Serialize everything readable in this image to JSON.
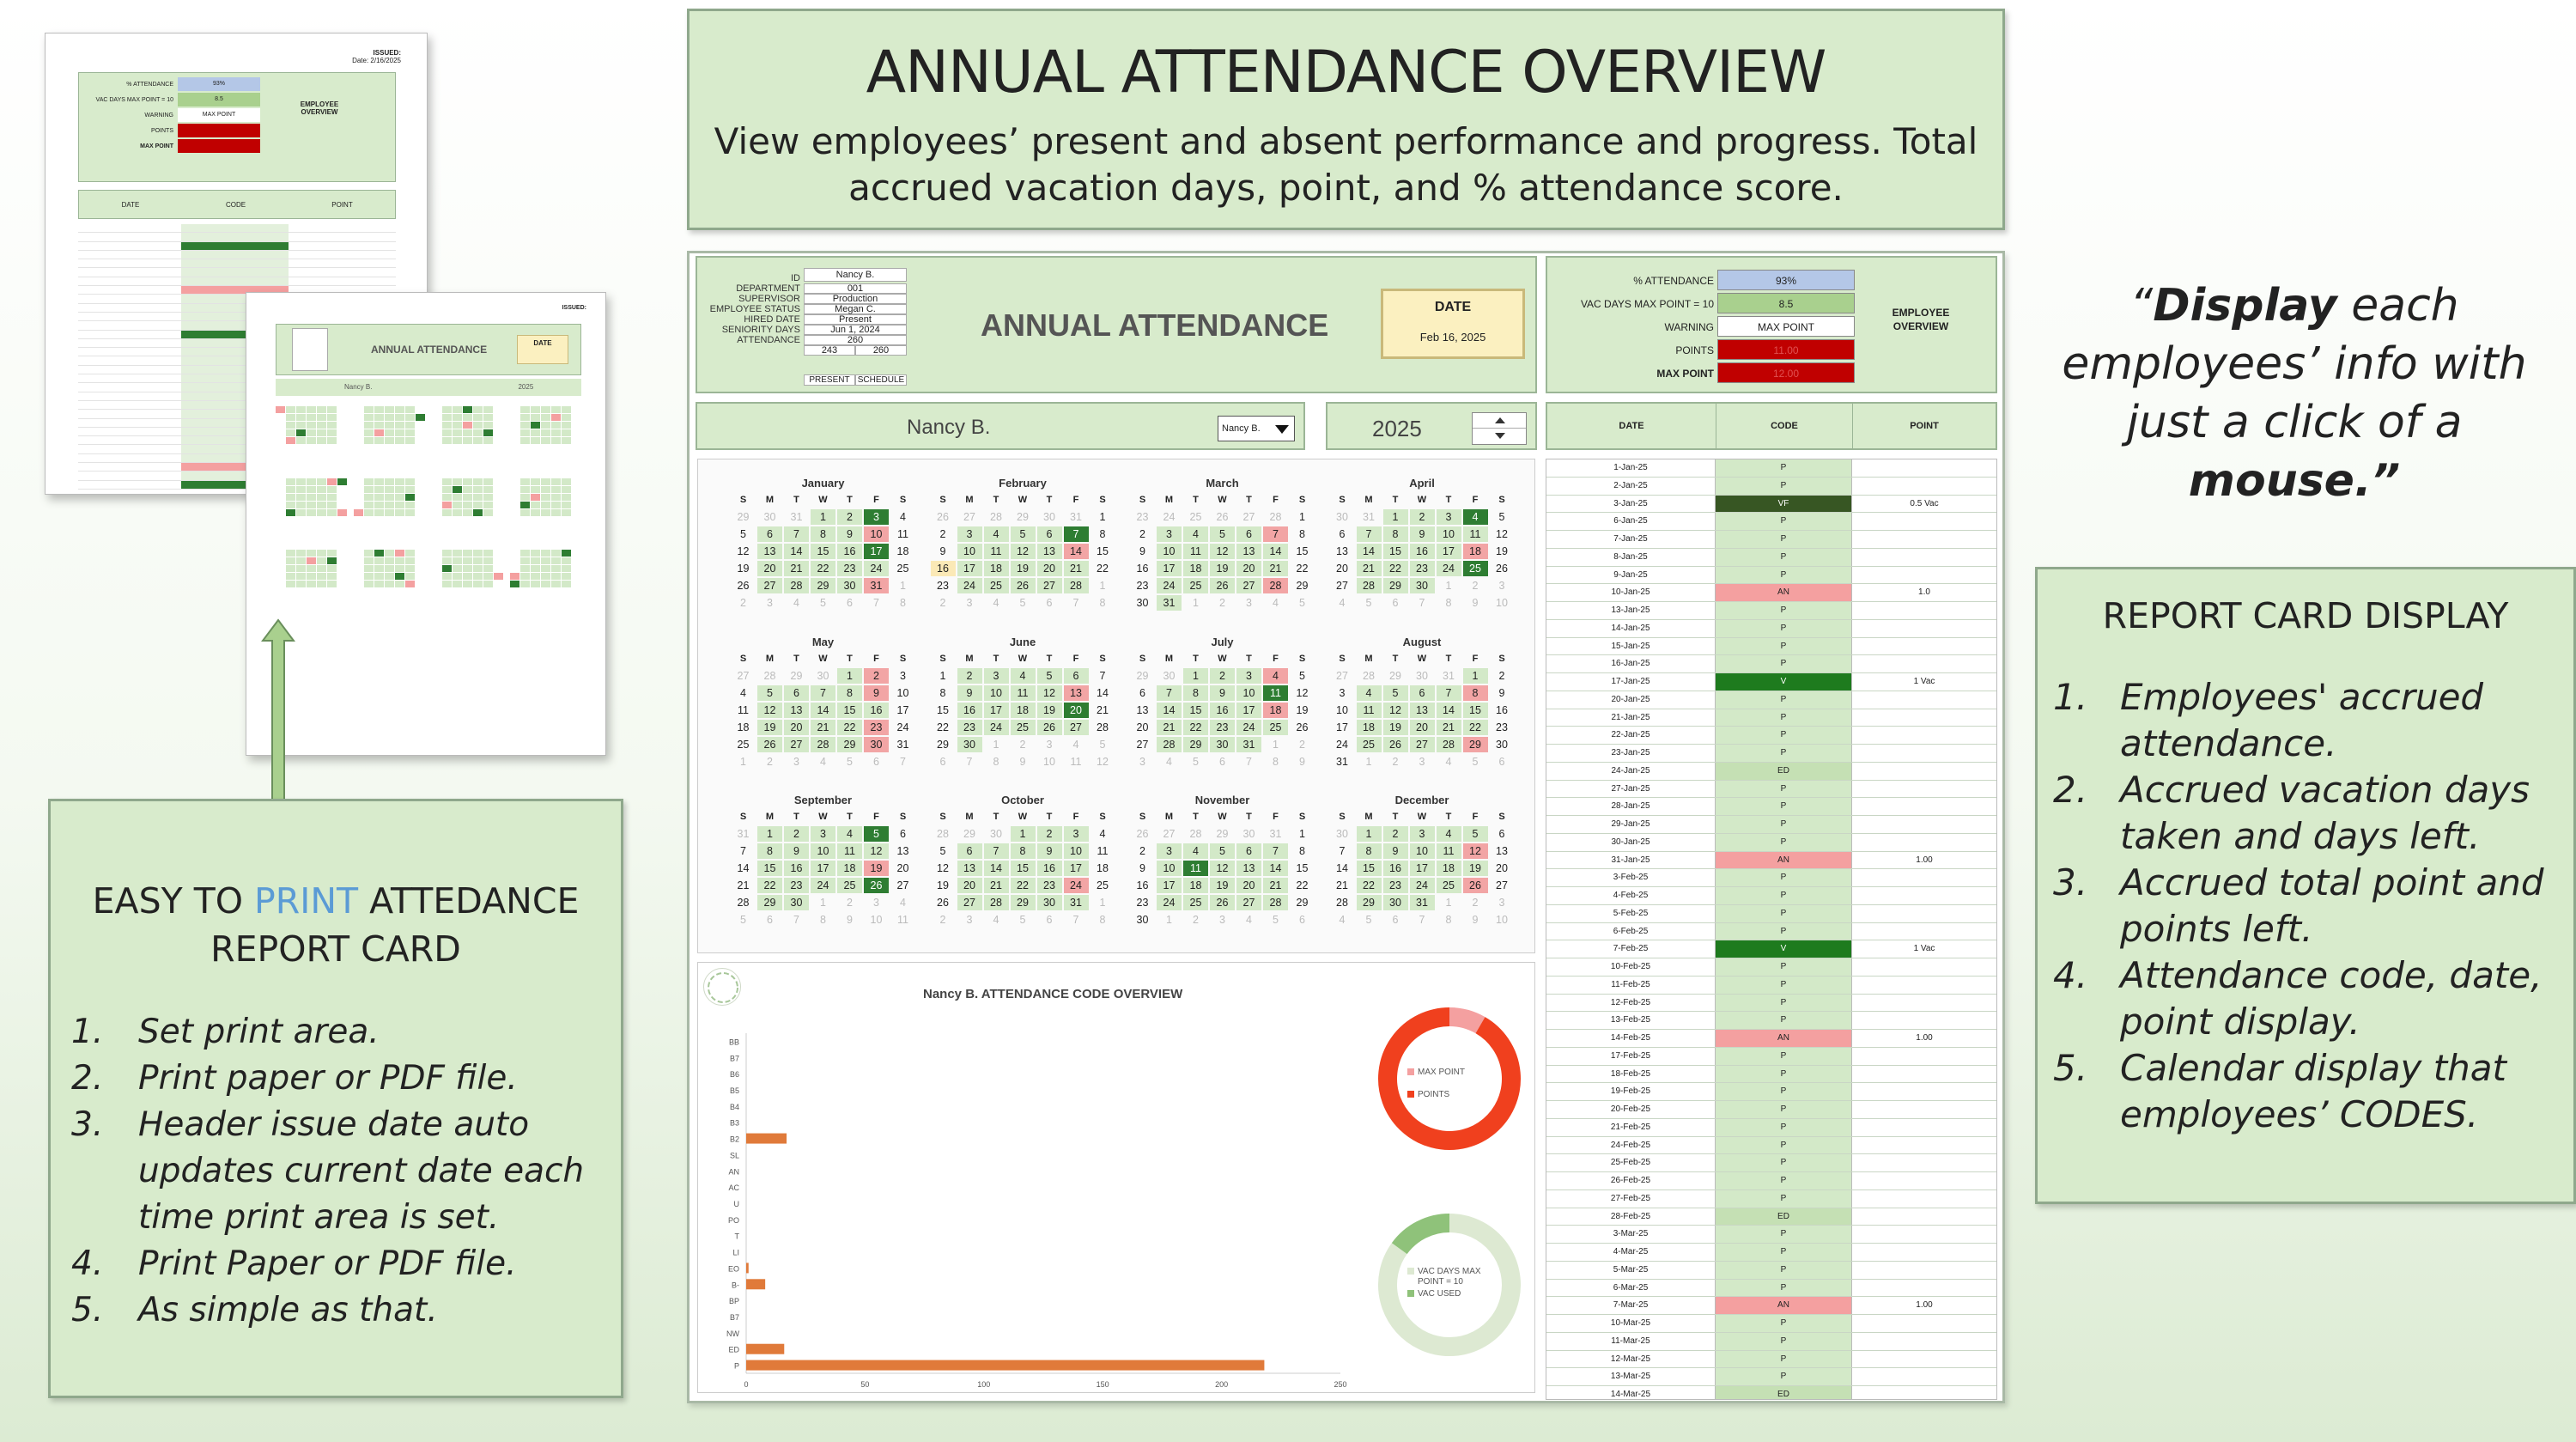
{
  "title_box": {
    "title": "ANNUAL ATTENDANCE OVERVIEW",
    "line1": "View employees’ present and absent performance and progress. Total",
    "line2": "accrued vacation days, point, and % attendance score."
  },
  "header": {
    "info_labels": [
      "ID",
      "DEPARTMENT",
      "SUPERVISOR",
      "EMPLOYEE STATUS",
      "HIRED DATE",
      "SENIORITY DAYS",
      "ATTENDANCE"
    ],
    "info_values": [
      "001",
      "Production",
      "Megan C.",
      "Present",
      "Jun 1, 2024",
      "260"
    ],
    "name_value": "Nancy B.",
    "attendance_present": "243",
    "attendance_schedule": "260",
    "present_label": "PRESENT",
    "schedule_label": "SCHEDULE",
    "title": "ANNUAL ATTENDANCE",
    "date_label": "DATE",
    "date_value": "Feb 16, 2025"
  },
  "summary": {
    "attendance_label": "% ATTENDANCE",
    "attendance_value": "93%",
    "vac_label": "VAC DAYS MAX POINT = 10",
    "vac_value": "8.5",
    "warning_label": "WARNING",
    "warning_value": "MAX POINT",
    "points_label": "POINTS",
    "points_value": "11.00",
    "max_label": "MAX POINT",
    "max_value": "12.00",
    "badge": "EMPLOYEE OVERVIEW"
  },
  "selector": {
    "name": "Nancy B.",
    "dropdown": "Nancy B.",
    "year": "2025"
  },
  "report_headers": {
    "date": "DATE",
    "code": "CODE",
    "point": "POINT"
  },
  "report_rows": [
    [
      "1-Jan-25",
      "P",
      ""
    ],
    [
      "2-Jan-25",
      "P",
      ""
    ],
    [
      "3-Jan-25",
      "VF",
      "0.5 Vac"
    ],
    [
      "6-Jan-25",
      "P",
      ""
    ],
    [
      "7-Jan-25",
      "P",
      ""
    ],
    [
      "8-Jan-25",
      "P",
      ""
    ],
    [
      "9-Jan-25",
      "P",
      ""
    ],
    [
      "10-Jan-25",
      "AN",
      "1.0"
    ],
    [
      "13-Jan-25",
      "P",
      ""
    ],
    [
      "14-Jan-25",
      "P",
      ""
    ],
    [
      "15-Jan-25",
      "P",
      ""
    ],
    [
      "16-Jan-25",
      "P",
      ""
    ],
    [
      "17-Jan-25",
      "V",
      "1 Vac"
    ],
    [
      "20-Jan-25",
      "P",
      ""
    ],
    [
      "21-Jan-25",
      "P",
      ""
    ],
    [
      "22-Jan-25",
      "P",
      ""
    ],
    [
      "23-Jan-25",
      "P",
      ""
    ],
    [
      "24-Jan-25",
      "ED",
      ""
    ],
    [
      "27-Jan-25",
      "P",
      ""
    ],
    [
      "28-Jan-25",
      "P",
      ""
    ],
    [
      "29-Jan-25",
      "P",
      ""
    ],
    [
      "30-Jan-25",
      "P",
      ""
    ],
    [
      "31-Jan-25",
      "AN",
      "1.00"
    ],
    [
      "3-Feb-25",
      "P",
      ""
    ],
    [
      "4-Feb-25",
      "P",
      ""
    ],
    [
      "5-Feb-25",
      "P",
      ""
    ],
    [
      "6-Feb-25",
      "P",
      ""
    ],
    [
      "7-Feb-25",
      "V",
      "1 Vac"
    ],
    [
      "10-Feb-25",
      "P",
      ""
    ],
    [
      "11-Feb-25",
      "P",
      ""
    ],
    [
      "12-Feb-25",
      "P",
      ""
    ],
    [
      "13-Feb-25",
      "P",
      ""
    ],
    [
      "14-Feb-25",
      "AN",
      "1.00"
    ],
    [
      "17-Feb-25",
      "P",
      ""
    ],
    [
      "18-Feb-25",
      "P",
      ""
    ],
    [
      "19-Feb-25",
      "P",
      ""
    ],
    [
      "20-Feb-25",
      "P",
      ""
    ],
    [
      "21-Feb-25",
      "P",
      ""
    ],
    [
      "24-Feb-25",
      "P",
      ""
    ],
    [
      "25-Feb-25",
      "P",
      ""
    ],
    [
      "26-Feb-25",
      "P",
      ""
    ],
    [
      "27-Feb-25",
      "P",
      ""
    ],
    [
      "28-Feb-25",
      "ED",
      ""
    ],
    [
      "3-Mar-25",
      "P",
      ""
    ],
    [
      "4-Mar-25",
      "P",
      ""
    ],
    [
      "5-Mar-25",
      "P",
      ""
    ],
    [
      "6-Mar-25",
      "P",
      ""
    ],
    [
      "7-Mar-25",
      "AN",
      "1.00"
    ],
    [
      "10-Mar-25",
      "P",
      ""
    ],
    [
      "11-Mar-25",
      "P",
      ""
    ],
    [
      "12-Mar-25",
      "P",
      ""
    ],
    [
      "13-Mar-25",
      "P",
      ""
    ],
    [
      "14-Mar-25",
      "ED",
      ""
    ]
  ],
  "calendar": {
    "dow": [
      "S",
      "M",
      "T",
      "W",
      "T",
      "F",
      "S"
    ],
    "months": [
      "January",
      "February",
      "March",
      "April",
      "May",
      "June",
      "July",
      "August",
      "September",
      "October",
      "November",
      "December"
    ]
  },
  "chart_data": {
    "type": "bar",
    "title": "Nancy B. ATTENDANCE CODE OVERVIEW",
    "categories": [
      "BB",
      "B7",
      "B6",
      "B5",
      "B4",
      "B3",
      "B2",
      "SL",
      "AN",
      "AC",
      "U",
      "PO",
      "T",
      "LI",
      "EO",
      "B-",
      "BP",
      "B7",
      "NW",
      "ED",
      "P"
    ],
    "values": [
      0,
      0,
      0,
      0,
      0,
      0,
      17,
      0,
      0,
      0,
      0,
      0,
      0,
      0,
      1,
      8,
      0,
      0,
      0,
      16,
      218
    ],
    "xticks": [
      "0",
      "50",
      "100",
      "150",
      "200",
      "250"
    ],
    "xlim": [
      0,
      250
    ],
    "orientation": "horizontal",
    "donut1": {
      "labels": [
        "MAX POINT",
        "POINTS"
      ],
      "values": [
        1,
        11
      ],
      "colors": [
        "#f4a0a0",
        "#f0401e"
      ]
    },
    "donut2": {
      "labels": [
        "VAC DAYS MAX POINT = 10",
        "VAC USED"
      ],
      "values": [
        8.5,
        1.5
      ],
      "colors": [
        "#dde9d2",
        "#8fc27a"
      ]
    }
  },
  "quote": {
    "l1a": "“",
    "l1b": "Display",
    "l1c": " each",
    "l2": "employees’ info with",
    "l3a": "just a click of a ",
    "l3b": "mouse",
    "l3c": ".”"
  },
  "print_box": {
    "t1a": "EASY TO ",
    "t1b": "PRINT",
    "t1c": " ATTEDANCE",
    "t2": "REPORT CARD",
    "items": [
      [
        "1.",
        "Set print area."
      ],
      [
        "2.",
        "Print paper or PDF file."
      ],
      [
        "3.",
        "Header issue date auto updates current date each time print area is set."
      ],
      [
        "4.",
        "Print Paper or PDF file."
      ],
      [
        "5.",
        "As simple as that."
      ]
    ]
  },
  "report_box": {
    "title": "REPORT CARD DISPLAY",
    "items": [
      [
        "1.",
        "Employees' accrued attendance."
      ],
      [
        "2.",
        "Accrued vacation days taken and days left."
      ],
      [
        "3.",
        "Accrued total point and points left."
      ],
      [
        "4.",
        "Attendance code, date, point display."
      ],
      [
        "5.",
        "Calendar display that employees’ CODES."
      ]
    ]
  },
  "mock1": {
    "issued": "ISSUED:",
    "date": "Date: 2/16/2025",
    "att": "% ATTENDANCE",
    "att_v": "93%",
    "vac": "VAC DAYS MAX POINT = 10",
    "vac_v": "8.5",
    "warn": "WARNING",
    "warn_v": "MAX POINT",
    "pts": "POINTS",
    "max": "MAX POINT",
    "badge": "EMPLOYEE OVERVIEW",
    "h_date": "DATE",
    "h_code": "CODE",
    "h_point": "POINT"
  },
  "mock2": {
    "issued": "ISSUED:",
    "title": "ANNUAL ATTENDANCE",
    "date": "DATE",
    "name": "Nancy B.",
    "year": "2025"
  },
  "colors": {
    "accent": "#5b9bd5",
    "panel": "#d8ebcc",
    "red": "#c00000",
    "dark_green": "#2e7d32",
    "orange": "#e07a3a"
  }
}
